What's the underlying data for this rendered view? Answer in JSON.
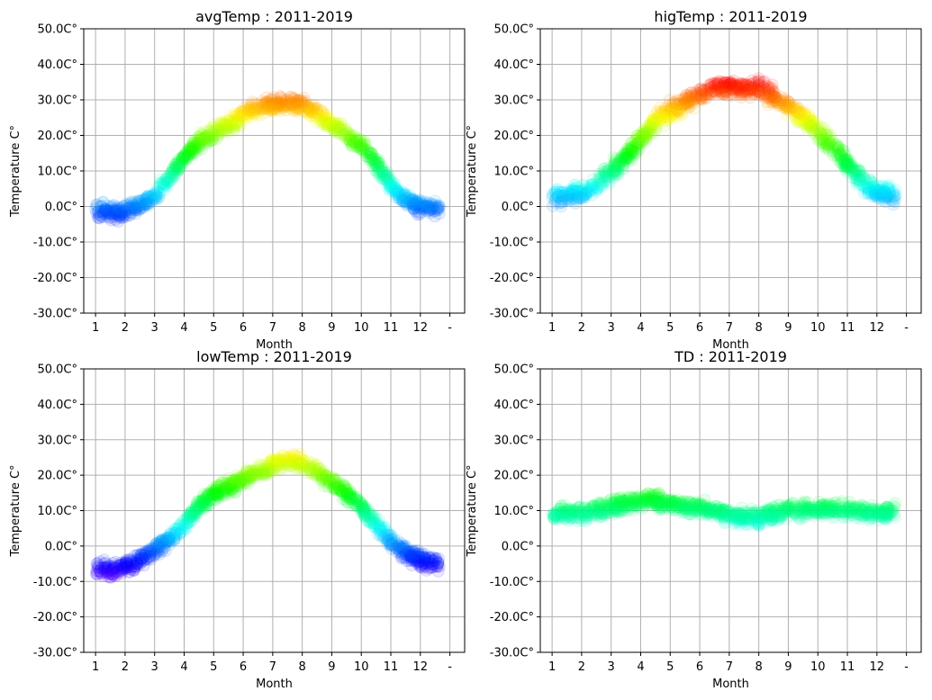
{
  "chart_data": [
    {
      "type": "scatter",
      "key": "avgTemp",
      "title": "avgTemp : 2011-2019",
      "xlabel": "Month",
      "ylabel": "Temperature C°",
      "xticks": [
        "1",
        "2",
        "3",
        "4",
        "5",
        "6",
        "7",
        "8",
        "9",
        "10",
        "11",
        "12",
        "-"
      ],
      "yticks": [
        "-30.0C°",
        "-20.0C°",
        "-10.0C°",
        "0.0C°",
        "10.0C°",
        "20.0C°",
        "30.0C°",
        "40.0C°",
        "50.0C°"
      ],
      "xlim": [
        0.6,
        13.5
      ],
      "ylim": [
        -30,
        50
      ],
      "grid": true,
      "colormap": "hsv (color by temperature)",
      "profile": [
        [
          1.0,
          -1
        ],
        [
          1.5,
          -2
        ],
        [
          2.0,
          -1.5
        ],
        [
          2.5,
          0.5
        ],
        [
          3.0,
          3
        ],
        [
          3.5,
          8
        ],
        [
          4.0,
          14
        ],
        [
          4.5,
          18
        ],
        [
          5.0,
          21
        ],
        [
          5.5,
          23
        ],
        [
          6.0,
          25.5
        ],
        [
          6.5,
          28
        ],
        [
          7.0,
          28.5
        ],
        [
          7.5,
          29
        ],
        [
          8.0,
          28.5
        ],
        [
          8.5,
          26
        ],
        [
          9.0,
          23
        ],
        [
          9.5,
          20
        ],
        [
          10.0,
          17
        ],
        [
          10.5,
          12
        ],
        [
          11.0,
          6
        ],
        [
          11.5,
          2
        ],
        [
          12.0,
          0
        ],
        [
          12.6,
          -1
        ]
      ],
      "spread": 3
    },
    {
      "type": "scatter",
      "key": "higTemp",
      "title": "higTemp : 2011-2019",
      "xlabel": "Month",
      "ylabel": "Temperature C°",
      "xticks": [
        "1",
        "2",
        "3",
        "4",
        "5",
        "6",
        "7",
        "8",
        "9",
        "10",
        "11",
        "12",
        "-"
      ],
      "yticks": [
        "-30.0C°",
        "-20.0C°",
        "-10.0C°",
        "0.0C°",
        "10.0C°",
        "20.0C°",
        "30.0C°",
        "40.0C°",
        "50.0C°"
      ],
      "xlim": [
        0.6,
        13.5
      ],
      "ylim": [
        -30,
        50
      ],
      "grid": true,
      "colormap": "hsv (color by temperature)",
      "profile": [
        [
          1.0,
          3
        ],
        [
          1.5,
          3
        ],
        [
          2.0,
          4
        ],
        [
          2.5,
          6
        ],
        [
          3.0,
          10
        ],
        [
          3.5,
          14
        ],
        [
          4.0,
          19
        ],
        [
          4.5,
          24
        ],
        [
          5.0,
          27
        ],
        [
          5.5,
          29
        ],
        [
          6.0,
          31.5
        ],
        [
          6.5,
          33
        ],
        [
          7.0,
          33.5
        ],
        [
          7.5,
          33.5
        ],
        [
          8.0,
          33
        ],
        [
          8.5,
          31
        ],
        [
          9.0,
          28
        ],
        [
          9.5,
          25
        ],
        [
          10.0,
          21
        ],
        [
          10.5,
          17
        ],
        [
          11.0,
          12
        ],
        [
          11.5,
          7
        ],
        [
          12.0,
          4
        ],
        [
          12.6,
          3
        ]
      ],
      "spread": 3.5
    },
    {
      "type": "scatter",
      "key": "lowTemp",
      "title": "lowTemp : 2011-2019",
      "xlabel": "Month",
      "ylabel": "Temperature C°",
      "xticks": [
        "1",
        "2",
        "3",
        "4",
        "5",
        "6",
        "7",
        "8",
        "9",
        "10",
        "11",
        "12",
        "-"
      ],
      "yticks": [
        "-30.0C°",
        "-20.0C°",
        "-10.0C°",
        "0.0C°",
        "10.0C°",
        "20.0C°",
        "30.0C°",
        "40.0C°",
        "50.0C°"
      ],
      "xlim": [
        0.6,
        13.5
      ],
      "ylim": [
        -30,
        50
      ],
      "grid": true,
      "colormap": "hsv (color by temperature)",
      "profile": [
        [
          1.0,
          -6
        ],
        [
          1.5,
          -7
        ],
        [
          2.0,
          -6
        ],
        [
          2.5,
          -4
        ],
        [
          3.0,
          -1
        ],
        [
          3.5,
          2
        ],
        [
          4.0,
          6
        ],
        [
          4.5,
          11
        ],
        [
          5.0,
          15
        ],
        [
          5.5,
          17
        ],
        [
          6.0,
          19
        ],
        [
          6.5,
          21
        ],
        [
          7.0,
          23
        ],
        [
          7.5,
          24
        ],
        [
          8.0,
          23.5
        ],
        [
          8.5,
          21
        ],
        [
          9.0,
          18
        ],
        [
          9.5,
          15
        ],
        [
          10.0,
          11
        ],
        [
          10.5,
          6
        ],
        [
          11.0,
          1
        ],
        [
          11.5,
          -2
        ],
        [
          12.0,
          -4
        ],
        [
          12.6,
          -5
        ]
      ],
      "spread": 3
    },
    {
      "type": "scatter",
      "key": "TD",
      "title": "TD : 2011-2019",
      "xlabel": "Month",
      "ylabel": "Temperature C°",
      "xticks": [
        "1",
        "2",
        "3",
        "4",
        "5",
        "6",
        "7",
        "8",
        "9",
        "10",
        "11",
        "12",
        "-"
      ],
      "yticks": [
        "-30.0C°",
        "-20.0C°",
        "-10.0C°",
        "0.0C°",
        "10.0C°",
        "20.0C°",
        "30.0C°",
        "40.0C°",
        "50.0C°"
      ],
      "xlim": [
        0.6,
        13.5
      ],
      "ylim": [
        -30,
        50
      ],
      "grid": true,
      "colormap": "hsv (color by temperature)",
      "profile": [
        [
          1.0,
          9
        ],
        [
          1.5,
          9
        ],
        [
          2.0,
          9
        ],
        [
          2.5,
          10
        ],
        [
          3.0,
          11
        ],
        [
          3.5,
          12
        ],
        [
          4.0,
          12.5
        ],
        [
          4.5,
          13
        ],
        [
          5.0,
          12
        ],
        [
          5.5,
          11
        ],
        [
          6.0,
          11
        ],
        [
          6.5,
          10
        ],
        [
          7.0,
          8.5
        ],
        [
          7.5,
          8
        ],
        [
          8.0,
          8
        ],
        [
          8.5,
          9
        ],
        [
          9.0,
          10
        ],
        [
          9.5,
          10
        ],
        [
          10.0,
          10
        ],
        [
          10.5,
          10.5
        ],
        [
          11.0,
          10
        ],
        [
          11.5,
          9.5
        ],
        [
          12.0,
          9
        ],
        [
          12.6,
          10
        ]
      ],
      "spread": 3
    }
  ]
}
